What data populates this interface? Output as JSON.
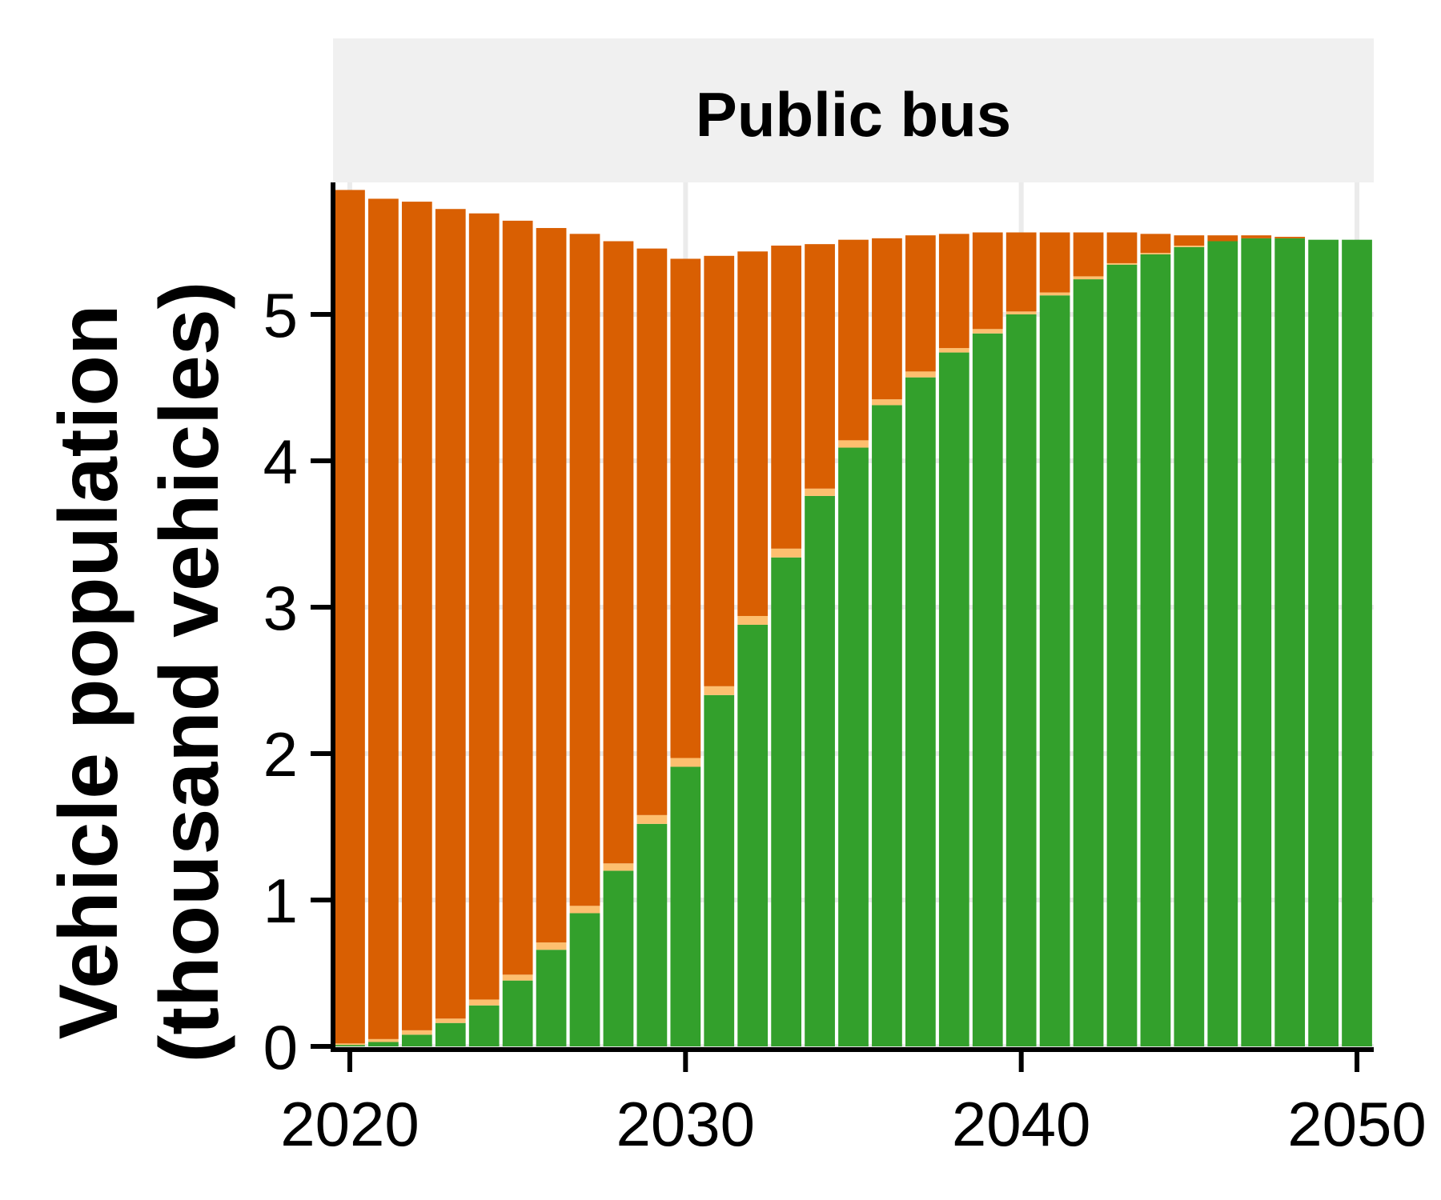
{
  "chart_data": {
    "type": "bar",
    "stacked": true,
    "panel_title": "Public bus",
    "ylabel_line1": "Vehicle population",
    "ylabel_line2": "(thousand vehicles)",
    "xlabel": "",
    "xlim": [
      2019.5,
      2050.5
    ],
    "ylim": [
      0,
      5.9
    ],
    "xticks": [
      2020,
      2030,
      2040,
      2050
    ],
    "yticks": [
      0,
      1,
      2,
      3,
      4,
      5
    ],
    "grid": true,
    "legend": "none",
    "categories": [
      2020,
      2021,
      2022,
      2023,
      2024,
      2025,
      2026,
      2027,
      2028,
      2029,
      2030,
      2031,
      2032,
      2033,
      2034,
      2035,
      2036,
      2037,
      2038,
      2039,
      2040,
      2041,
      2042,
      2043,
      2044,
      2045,
      2046,
      2047,
      2048,
      2049,
      2050
    ],
    "series": [
      {
        "color": "#33a02c",
        "values": [
          0.01,
          0.03,
          0.08,
          0.16,
          0.28,
          0.45,
          0.66,
          0.91,
          1.2,
          1.52,
          1.91,
          2.4,
          2.88,
          3.34,
          3.76,
          4.09,
          4.38,
          4.57,
          4.74,
          4.87,
          5.0,
          5.13,
          5.24,
          5.34,
          5.41,
          5.46,
          5.5,
          5.52,
          5.52,
          5.51,
          5.51
        ]
      },
      {
        "color": "#fdbf6f",
        "values": [
          0.01,
          0.02,
          0.03,
          0.03,
          0.04,
          0.04,
          0.05,
          0.05,
          0.05,
          0.06,
          0.06,
          0.06,
          0.06,
          0.06,
          0.05,
          0.05,
          0.04,
          0.04,
          0.03,
          0.03,
          0.02,
          0.02,
          0.02,
          0.01,
          0.01,
          0.01,
          0.0,
          0.0,
          0.0,
          0.0,
          0.0
        ]
      },
      {
        "color": "#d95f02",
        "values": [
          5.83,
          5.74,
          5.66,
          5.53,
          5.37,
          5.15,
          4.88,
          4.59,
          4.25,
          3.87,
          3.41,
          2.94,
          2.49,
          2.07,
          1.67,
          1.37,
          1.1,
          0.93,
          0.78,
          0.66,
          0.54,
          0.41,
          0.3,
          0.21,
          0.13,
          0.07,
          0.04,
          0.02,
          0.01,
          0.0,
          0.0
        ]
      }
    ],
    "colors": {
      "strip_background": "#f0f0f0",
      "grid": "#ebebeb",
      "axis": "#000000"
    }
  }
}
